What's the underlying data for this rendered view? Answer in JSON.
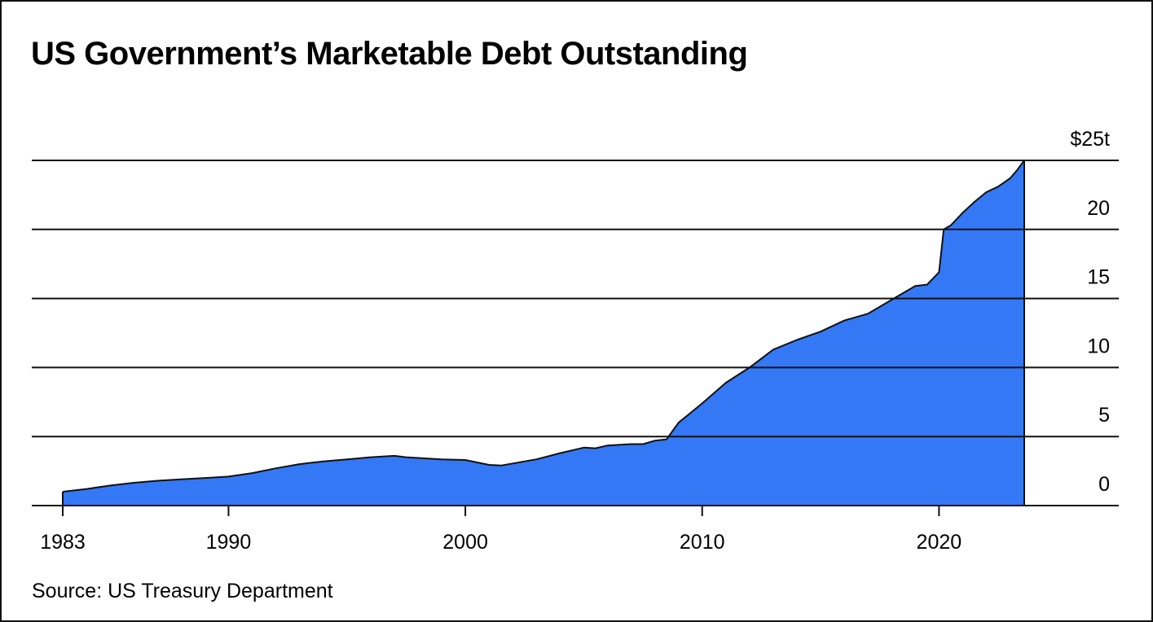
{
  "chart_data": {
    "type": "area",
    "title": "US Government’s Marketable Debt Outstanding",
    "source": "Source: US Treasury Department",
    "xlabel": "",
    "ylabel": "",
    "x_ticks": [
      {
        "value": 1983,
        "label": "1983"
      },
      {
        "value": 1990,
        "label": "1990"
      },
      {
        "value": 2000,
        "label": "2000"
      },
      {
        "value": 2010,
        "label": "2010"
      },
      {
        "value": 2020,
        "label": "2020"
      }
    ],
    "y_ticks": [
      {
        "value": 0,
        "label": "0"
      },
      {
        "value": 5,
        "label": "5"
      },
      {
        "value": 10,
        "label": "10"
      },
      {
        "value": 15,
        "label": "15"
      },
      {
        "value": 20,
        "label": "20"
      },
      {
        "value": 25,
        "label": "$25t"
      }
    ],
    "xlim": [
      1983,
      2023.6
    ],
    "ylim": [
      0,
      25
    ],
    "grid": true,
    "fill_color": "#3478f6",
    "line_color": "#111111",
    "series": [
      {
        "x": [
          1983.0,
          1984.0,
          1985.0,
          1986.0,
          1987.0,
          1988.0,
          1989.0,
          1990.0,
          1991.0,
          1992.0,
          1993.0,
          1994.0,
          1995.0,
          1996.0,
          1997.0,
          1997.5,
          1998.0,
          1999.0,
          2000.0,
          2001.0,
          2001.5,
          2002.0,
          2003.0,
          2004.0,
          2005.0,
          2005.5,
          2006.0,
          2007.0,
          2007.5,
          2008.0,
          2008.5,
          2009.0,
          2009.5,
          2010.0,
          2011.0,
          2012.0,
          2013.0,
          2014.0,
          2015.0,
          2016.0,
          2017.0,
          2018.0,
          2019.0,
          2019.5,
          2020.0,
          2020.2,
          2020.5,
          2021.0,
          2021.5,
          2022.0,
          2022.5,
          2023.0,
          2023.3,
          2023.6
        ],
        "y": [
          1.0,
          1.2,
          1.45,
          1.65,
          1.8,
          1.9,
          2.0,
          2.1,
          2.35,
          2.7,
          3.0,
          3.2,
          3.35,
          3.5,
          3.6,
          3.5,
          3.45,
          3.35,
          3.3,
          2.95,
          2.9,
          3.05,
          3.35,
          3.8,
          4.2,
          4.15,
          4.35,
          4.45,
          4.45,
          4.7,
          4.8,
          6.0,
          6.7,
          7.4,
          8.9,
          10.0,
          11.3,
          12.0,
          12.6,
          13.4,
          13.9,
          14.9,
          15.9,
          16.0,
          16.9,
          20.0,
          20.3,
          21.2,
          22.0,
          22.7,
          23.1,
          23.7,
          24.3,
          25.0
        ]
      }
    ]
  }
}
